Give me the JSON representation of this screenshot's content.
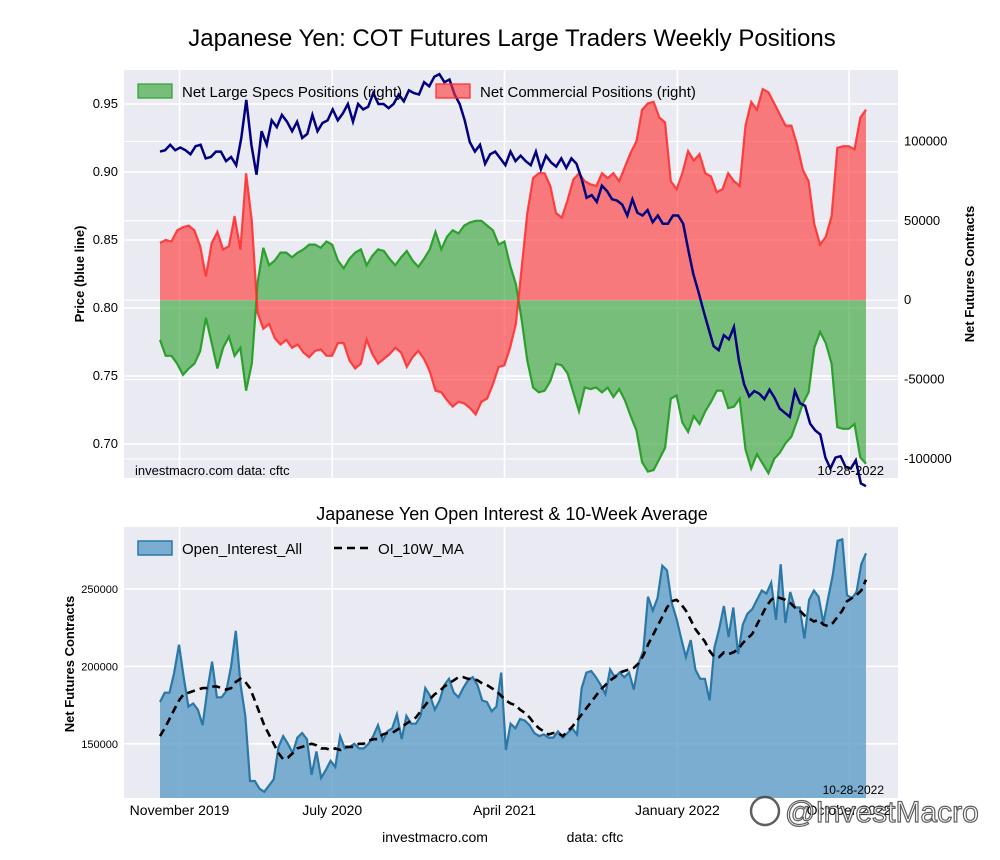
{
  "figure": {
    "title": "Japanese Yen: COT Futures Large Traders Weekly Positions",
    "footer_site": "investmacro.com",
    "footer_data": "data: cftc",
    "watermark": "@InvestMacro"
  },
  "colors": {
    "background": "#eaeaf2",
    "price_line": "#000080",
    "specs_fill": "#2ca02c",
    "commercial_fill": "#ff3333",
    "oi_fill": "#5f9ec8",
    "oi_line": "#2a78a8",
    "ma_line": "#000000"
  },
  "chart_data": [
    {
      "type": "area",
      "title": "Japanese Yen: COT Futures Large Traders Weekly Positions",
      "ylabel_left": "Price (blue line)",
      "ylabel_right": "Net Futures Contracts",
      "left_ticks": [
        "0.70",
        "0.75",
        "0.80",
        "0.85",
        "0.90",
        "0.95"
      ],
      "right_ticks": [
        "-100000",
        "-50000",
        "0",
        "50000",
        "100000"
      ],
      "ylim_left": [
        0.675,
        0.975
      ],
      "ylim_right": [
        -112000,
        145000
      ],
      "grid": true,
      "legend_position": "top-left",
      "annotation_left": "investmacro.com    data: cftc",
      "annotation_right": "10-28-2022",
      "date_range": [
        "2019-10-01",
        "2022-10-28"
      ],
      "series": [
        {
          "name": "Net Large Specs Positions (right)",
          "axis": "right",
          "values": [
            -25000,
            -35000,
            -35000,
            -40000,
            -47000,
            -43000,
            -40000,
            -32000,
            -11000,
            -27000,
            -43000,
            -30000,
            -23000,
            -35000,
            -30000,
            -57000,
            -40000,
            11000,
            33000,
            22000,
            25000,
            30000,
            30000,
            27000,
            30000,
            32000,
            35000,
            35000,
            33000,
            37000,
            35000,
            25000,
            20000,
            26000,
            30000,
            32000,
            22000,
            28000,
            32000,
            31000,
            26000,
            22000,
            27000,
            31000,
            25000,
            21000,
            26000,
            32000,
            43000,
            32000,
            40000,
            44000,
            42000,
            47000,
            49000,
            50000,
            50000,
            47000,
            44000,
            35000,
            37000,
            22000,
            10000,
            -12000,
            -38000,
            -55000,
            -58000,
            -57000,
            -51000,
            -40000,
            -41000,
            -46000,
            -58000,
            -70000,
            -55000,
            -56000,
            -55000,
            -58000,
            -55000,
            -61000,
            -56000,
            -63000,
            -73000,
            -82000,
            -102000,
            -108000,
            -107000,
            -100000,
            -93000,
            -62000,
            -60000,
            -77000,
            -83000,
            -73000,
            -78000,
            -70000,
            -64000,
            -57000,
            -57000,
            -68000,
            -67000,
            -62000,
            -94000,
            -106000,
            -97000,
            -103000,
            -109000,
            -100000,
            -96000,
            -90000,
            -86000,
            -76000,
            -65000,
            -58000,
            -30000,
            -20000,
            -27000,
            -40000,
            -80000,
            -81000,
            -81000,
            -78000,
            -99000,
            -103000
          ]
        },
        {
          "name": "Net Commercial Positions (right)",
          "axis": "right",
          "values": [
            36000,
            38000,
            37000,
            44000,
            46000,
            47000,
            44000,
            34000,
            15000,
            36000,
            43000,
            32000,
            34000,
            53000,
            32000,
            80000,
            50000,
            -8000,
            -18000,
            -15000,
            -24000,
            -28000,
            -25000,
            -30000,
            -28000,
            -33000,
            -36000,
            -32000,
            -31000,
            -35000,
            -35000,
            -27000,
            -27000,
            -38000,
            -43000,
            -40000,
            -25000,
            -34000,
            -40000,
            -37000,
            -34000,
            -30000,
            -33000,
            -42000,
            -36000,
            -32000,
            -37000,
            -45000,
            -57000,
            -58000,
            -63000,
            -67000,
            -64000,
            -65000,
            -68000,
            -72000,
            -64000,
            -62000,
            -53000,
            -42000,
            -41000,
            -30000,
            -15000,
            20000,
            55000,
            77000,
            80000,
            80000,
            72000,
            55000,
            52000,
            63000,
            76000,
            80000,
            75000,
            73000,
            72000,
            80000,
            77000,
            80000,
            75000,
            84000,
            93000,
            100000,
            120000,
            124000,
            125000,
            115000,
            112000,
            75000,
            70000,
            80000,
            94000,
            88000,
            92000,
            80000,
            78000,
            68000,
            70000,
            80000,
            75000,
            72000,
            110000,
            125000,
            120000,
            133000,
            131000,
            124000,
            117000,
            110000,
            110000,
            98000,
            82000,
            75000,
            48000,
            35000,
            40000,
            53000,
            96000,
            97000,
            97000,
            95000,
            115000,
            120000
          ]
        },
        {
          "name": "Price",
          "axis": "left",
          "values": [
            0.915,
            0.916,
            0.92,
            0.916,
            0.918,
            0.916,
            0.913,
            0.919,
            0.92,
            0.91,
            0.911,
            0.915,
            0.915,
            0.908,
            0.911,
            0.905,
            0.925,
            0.953,
            0.92,
            0.898,
            0.93,
            0.92,
            0.938,
            0.933,
            0.942,
            0.937,
            0.93,
            0.937,
            0.925,
            0.928,
            0.942,
            0.93,
            0.936,
            0.938,
            0.946,
            0.938,
            0.943,
            0.95,
            0.937,
            0.95,
            0.946,
            0.948,
            0.958,
            0.95,
            0.95,
            0.947,
            0.95,
            0.957,
            0.952,
            0.96,
            0.958,
            0.957,
            0.966,
            0.963,
            0.97,
            0.972,
            0.966,
            0.968,
            0.957,
            0.95,
            0.938,
            0.922,
            0.915,
            0.92,
            0.906,
            0.913,
            0.915,
            0.91,
            0.905,
            0.915,
            0.908,
            0.912,
            0.908,
            0.905,
            0.915,
            0.902,
            0.912,
            0.907,
            0.904,
            0.91,
            0.903,
            0.91,
            0.906,
            0.895,
            0.881,
            0.883,
            0.878,
            0.89,
            0.886,
            0.88,
            0.879,
            0.876,
            0.868,
            0.88,
            0.87,
            0.868,
            0.872,
            0.863,
            0.868,
            0.862,
            0.862,
            0.868,
            0.868,
            0.862,
            0.843,
            0.825,
            0.812,
            0.798,
            0.785,
            0.772,
            0.769,
            0.78,
            0.777,
            0.786,
            0.761,
            0.744,
            0.735,
            0.739,
            0.737,
            0.733,
            0.74,
            0.734,
            0.726,
            0.723,
            0.72,
            0.739,
            0.73,
            0.728,
            0.715,
            0.71,
            0.707,
            0.69,
            0.682,
            0.69,
            0.691,
            0.683,
            0.682,
            0.688,
            0.671,
            0.669
          ]
        }
      ]
    },
    {
      "type": "area",
      "title": "Japanese Yen Open Interest & 10-Week Average",
      "ylabel": "Net Futures Contracts",
      "y_ticks": [
        "150000",
        "200000",
        "250000"
      ],
      "ylim": [
        115000,
        290000
      ],
      "x_tick_labels": [
        "November 2019",
        "July 2020",
        "April 2021",
        "January 2022",
        "October 2022"
      ],
      "x_tick_dates": [
        "2019-11-01",
        "2020-07-01",
        "2021-04-01",
        "2022-01-01",
        "2022-10-01"
      ],
      "date_range": [
        "2019-10-01",
        "2022-10-28"
      ],
      "grid": true,
      "legend_position": "top-left",
      "annotation_right": "10-28-2022",
      "series": [
        {
          "name": "Open_Interest_All",
          "values": [
            177000,
            183000,
            183000,
            196000,
            214000,
            193000,
            174000,
            176000,
            172000,
            162000,
            185000,
            203000,
            180000,
            180000,
            184000,
            200000,
            223000,
            188000,
            168000,
            126000,
            126000,
            121000,
            119000,
            123000,
            127000,
            148000,
            155000,
            150000,
            144000,
            154000,
            157000,
            153000,
            130000,
            145000,
            128000,
            133000,
            139000,
            135000,
            155000,
            147000,
            148000,
            150000,
            147000,
            147000,
            150000,
            155000,
            162000,
            152000,
            158000,
            160000,
            169000,
            153000,
            168000,
            163000,
            163000,
            168000,
            186000,
            181000,
            172000,
            178000,
            188000,
            192000,
            183000,
            180000,
            186000,
            191000,
            193000,
            188000,
            178000,
            177000,
            171000,
            174000,
            196000,
            146000,
            163000,
            160000,
            166000,
            165000,
            162000,
            157000,
            155000,
            156000,
            154000,
            154000,
            158000,
            154000,
            157000,
            160000,
            156000,
            186000,
            196000,
            197000,
            193000,
            188000,
            182000,
            198000,
            193000,
            196000,
            193000,
            196000,
            185000,
            202000,
            210000,
            245000,
            236000,
            244000,
            265000,
            262000,
            241000,
            231000,
            218000,
            206000,
            217000,
            198000,
            192000,
            192000,
            178000,
            212000,
            224000,
            239000,
            219000,
            238000,
            208000,
            227000,
            234000,
            237000,
            243000,
            249000,
            247000,
            254000,
            230000,
            266000,
            228000,
            248000,
            238000,
            238000,
            218000,
            243000,
            249000,
            245000,
            228000,
            244000,
            259000,
            281000,
            282000,
            246000,
            244000,
            248000,
            266000,
            273000
          ]
        },
        {
          "name": "OI_10W_MA",
          "values": [
            155000,
            160000,
            166000,
            172000,
            178000,
            182000,
            183000,
            184000,
            185000,
            186000,
            186000,
            187000,
            187000,
            186000,
            185000,
            186000,
            190000,
            192000,
            190000,
            186000,
            178000,
            170000,
            162000,
            156000,
            150000,
            144000,
            140000,
            141000,
            144000,
            147000,
            148000,
            149000,
            150000,
            149000,
            147000,
            147000,
            146000,
            147000,
            146000,
            148000,
            148000,
            148000,
            150000,
            150000,
            152000,
            153000,
            153000,
            156000,
            157000,
            157000,
            159000,
            161000,
            163000,
            165000,
            167000,
            171000,
            175000,
            179000,
            182000,
            184000,
            187000,
            189000,
            191000,
            193000,
            193000,
            192000,
            192000,
            191000,
            189000,
            188000,
            186000,
            184000,
            181000,
            178000,
            176000,
            175000,
            172000,
            170000,
            167000,
            163000,
            160000,
            158000,
            156000,
            157000,
            157000,
            155000,
            158000,
            161000,
            165000,
            169000,
            173000,
            177000,
            181000,
            185000,
            188000,
            191000,
            193000,
            196000,
            197000,
            198000,
            199000,
            202000,
            207000,
            214000,
            220000,
            226000,
            232000,
            238000,
            242000,
            243000,
            240000,
            236000,
            230000,
            224000,
            220000,
            216000,
            210000,
            206000,
            206000,
            209000,
            208000,
            209000,
            211000,
            215000,
            218000,
            221000,
            227000,
            233000,
            239000,
            243000,
            245000,
            244000,
            243000,
            241000,
            238000,
            236000,
            233000,
            231000,
            229000,
            230000,
            227000,
            226000,
            228000,
            232000,
            236000,
            242000,
            244000,
            246000,
            249000,
            256000
          ]
        }
      ]
    }
  ]
}
